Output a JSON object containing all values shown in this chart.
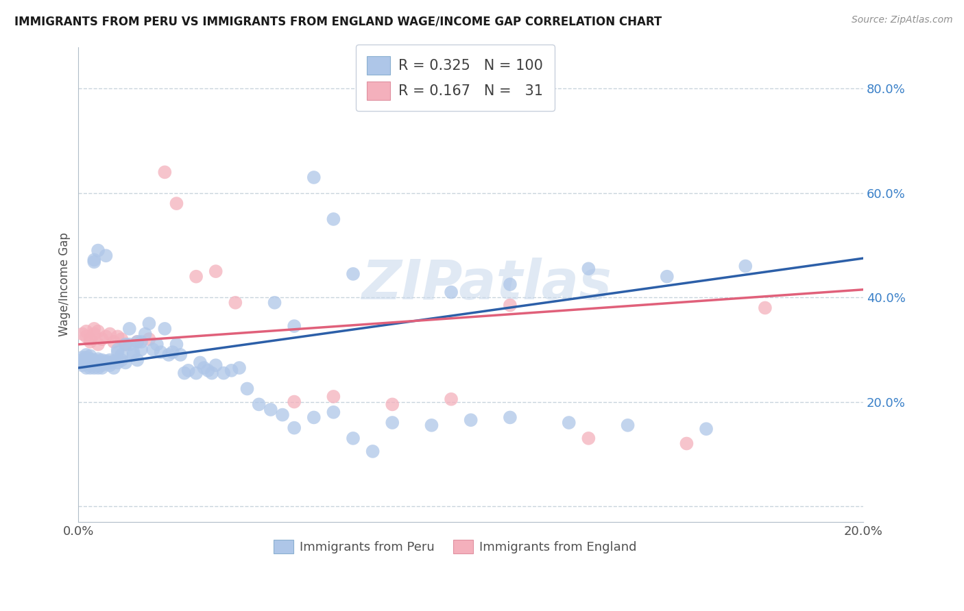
{
  "title": "IMMIGRANTS FROM PERU VS IMMIGRANTS FROM ENGLAND WAGE/INCOME GAP CORRELATION CHART",
  "source": "Source: ZipAtlas.com",
  "ylabel": "Wage/Income Gap",
  "xlim": [
    0.0,
    0.2
  ],
  "ylim": [
    -0.03,
    0.88
  ],
  "ytick_vals": [
    0.0,
    0.2,
    0.4,
    0.6,
    0.8
  ],
  "ytick_labels": [
    "",
    "20.0%",
    "40.0%",
    "60.0%",
    "80.0%"
  ],
  "xtick_vals": [
    0.0,
    0.2
  ],
  "xtick_labels": [
    "0.0%",
    "20.0%"
  ],
  "peru_color": "#aec6e8",
  "england_color": "#f4b0bc",
  "peru_line_color": "#2c5fa8",
  "england_line_color": "#e0607a",
  "watermark": "ZIPatlas",
  "background_color": "#ffffff",
  "grid_color": "#c8d4dc",
  "peru_legend_label": "R = 0.325   N = 100",
  "england_legend_label": "R = 0.167   N =   31",
  "bottom_legend_peru": "Immigrants from Peru",
  "bottom_legend_england": "Immigrants from England",
  "peru_line_x": [
    0.0,
    0.2
  ],
  "peru_line_y": [
    0.265,
    0.475
  ],
  "england_line_x": [
    0.0,
    0.2
  ],
  "england_line_y": [
    0.31,
    0.415
  ],
  "peru_scatter_x": [
    0.001,
    0.001,
    0.001,
    0.001,
    0.002,
    0.002,
    0.002,
    0.002,
    0.002,
    0.002,
    0.003,
    0.003,
    0.003,
    0.003,
    0.003,
    0.003,
    0.004,
    0.004,
    0.004,
    0.004,
    0.004,
    0.005,
    0.005,
    0.005,
    0.005,
    0.005,
    0.006,
    0.006,
    0.006,
    0.006,
    0.007,
    0.007,
    0.007,
    0.008,
    0.008,
    0.008,
    0.009,
    0.009,
    0.01,
    0.01,
    0.01,
    0.011,
    0.011,
    0.012,
    0.012,
    0.013,
    0.013,
    0.014,
    0.014,
    0.015,
    0.015,
    0.016,
    0.016,
    0.017,
    0.018,
    0.019,
    0.02,
    0.021,
    0.022,
    0.023,
    0.024,
    0.025,
    0.026,
    0.027,
    0.028,
    0.03,
    0.031,
    0.032,
    0.033,
    0.034,
    0.035,
    0.037,
    0.039,
    0.041,
    0.043,
    0.046,
    0.049,
    0.052,
    0.055,
    0.06,
    0.065,
    0.07,
    0.075,
    0.08,
    0.09,
    0.1,
    0.11,
    0.125,
    0.14,
    0.16,
    0.05,
    0.055,
    0.06,
    0.065,
    0.07,
    0.095,
    0.11,
    0.13,
    0.15,
    0.17
  ],
  "peru_scatter_y": [
    0.275,
    0.28,
    0.285,
    0.27,
    0.28,
    0.285,
    0.29,
    0.278,
    0.265,
    0.272,
    0.278,
    0.282,
    0.288,
    0.265,
    0.27,
    0.275,
    0.275,
    0.28,
    0.468,
    0.472,
    0.265,
    0.27,
    0.278,
    0.282,
    0.265,
    0.49,
    0.27,
    0.275,
    0.28,
    0.265,
    0.278,
    0.275,
    0.48,
    0.275,
    0.28,
    0.27,
    0.278,
    0.265,
    0.295,
    0.3,
    0.275,
    0.29,
    0.28,
    0.31,
    0.275,
    0.34,
    0.31,
    0.295,
    0.29,
    0.315,
    0.28,
    0.3,
    0.315,
    0.33,
    0.35,
    0.3,
    0.31,
    0.295,
    0.34,
    0.29,
    0.295,
    0.31,
    0.29,
    0.255,
    0.26,
    0.255,
    0.275,
    0.265,
    0.26,
    0.255,
    0.27,
    0.255,
    0.26,
    0.265,
    0.225,
    0.195,
    0.185,
    0.175,
    0.15,
    0.17,
    0.18,
    0.13,
    0.105,
    0.16,
    0.155,
    0.165,
    0.17,
    0.16,
    0.155,
    0.148,
    0.39,
    0.345,
    0.63,
    0.55,
    0.445,
    0.41,
    0.425,
    0.455,
    0.44,
    0.46
  ],
  "england_scatter_x": [
    0.001,
    0.002,
    0.002,
    0.003,
    0.003,
    0.004,
    0.004,
    0.005,
    0.005,
    0.006,
    0.007,
    0.008,
    0.009,
    0.01,
    0.011,
    0.012,
    0.015,
    0.018,
    0.022,
    0.025,
    0.03,
    0.035,
    0.04,
    0.055,
    0.065,
    0.08,
    0.095,
    0.11,
    0.13,
    0.155,
    0.175
  ],
  "england_scatter_y": [
    0.33,
    0.325,
    0.335,
    0.32,
    0.315,
    0.34,
    0.33,
    0.335,
    0.31,
    0.32,
    0.325,
    0.33,
    0.315,
    0.325,
    0.32,
    0.31,
    0.315,
    0.32,
    0.64,
    0.58,
    0.44,
    0.45,
    0.39,
    0.2,
    0.21,
    0.195,
    0.205,
    0.385,
    0.13,
    0.12,
    0.38
  ]
}
